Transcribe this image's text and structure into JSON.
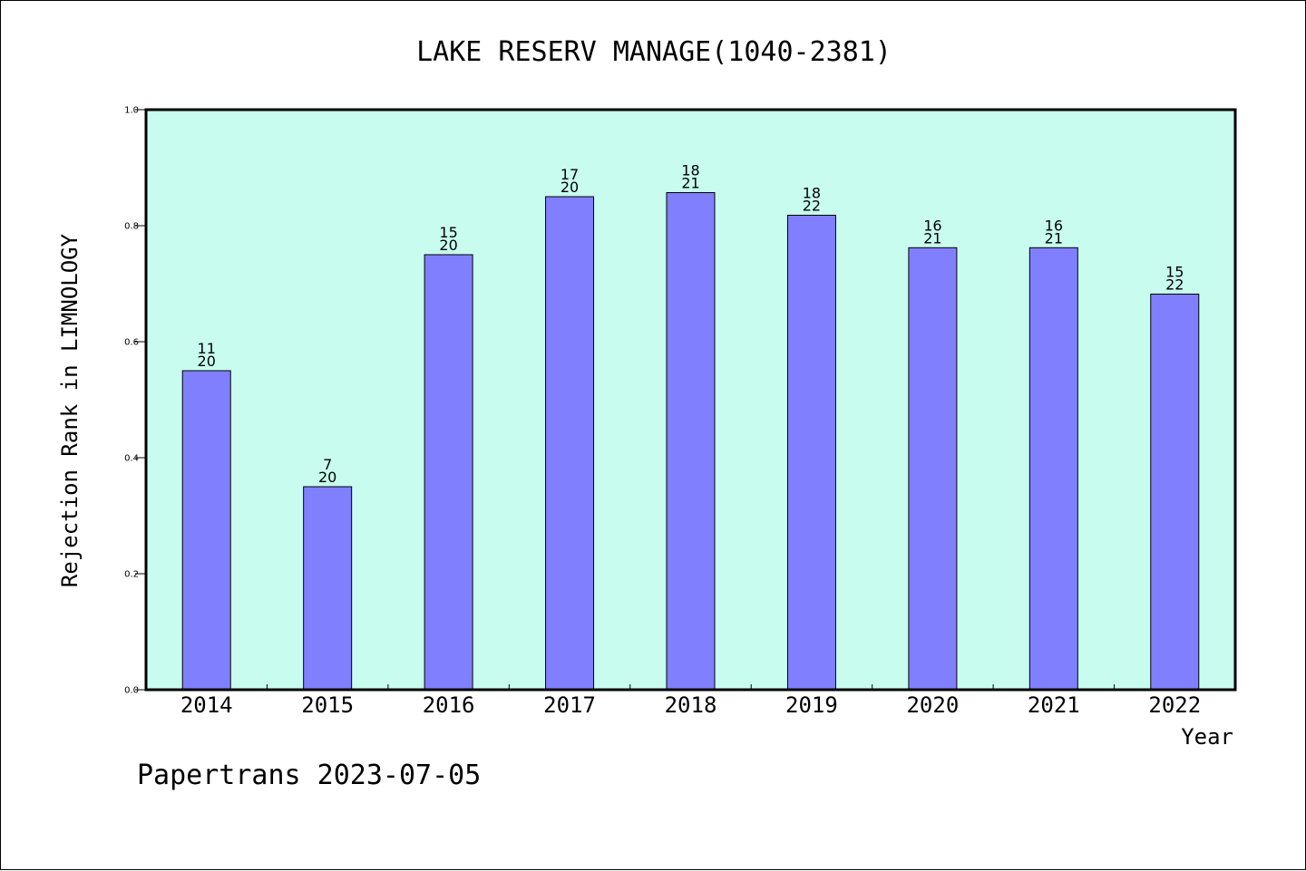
{
  "chart_data": {
    "type": "bar",
    "title": "LAKE RESERV MANAGE(1040-2381)",
    "xlabel": "Year",
    "ylabel": "Rejection Rank in LIMNOLOGY",
    "ylim": [
      0,
      1.0
    ],
    "yticks": [
      "0.0",
      "0.2",
      "0.4",
      "0.6",
      "0.8",
      "1.0"
    ],
    "categories": [
      "2014",
      "2015",
      "2016",
      "2017",
      "2018",
      "2019",
      "2020",
      "2021",
      "2022"
    ],
    "values": [
      0.55,
      0.35,
      0.75,
      0.85,
      0.857,
      0.818,
      0.762,
      0.762,
      0.682
    ],
    "rank": [
      "11",
      "7",
      "15",
      "17",
      "18",
      "18",
      "16",
      "16",
      "15"
    ],
    "total": [
      "20",
      "20",
      "20",
      "20",
      "21",
      "22",
      "21",
      "21",
      "22"
    ],
    "grid": false,
    "legend": "none",
    "colors": {
      "plot_bg": "#c8fcee",
      "bar": "#8080ff",
      "bar_edge": "#000000"
    }
  },
  "footer": "Papertrans 2023-07-05"
}
